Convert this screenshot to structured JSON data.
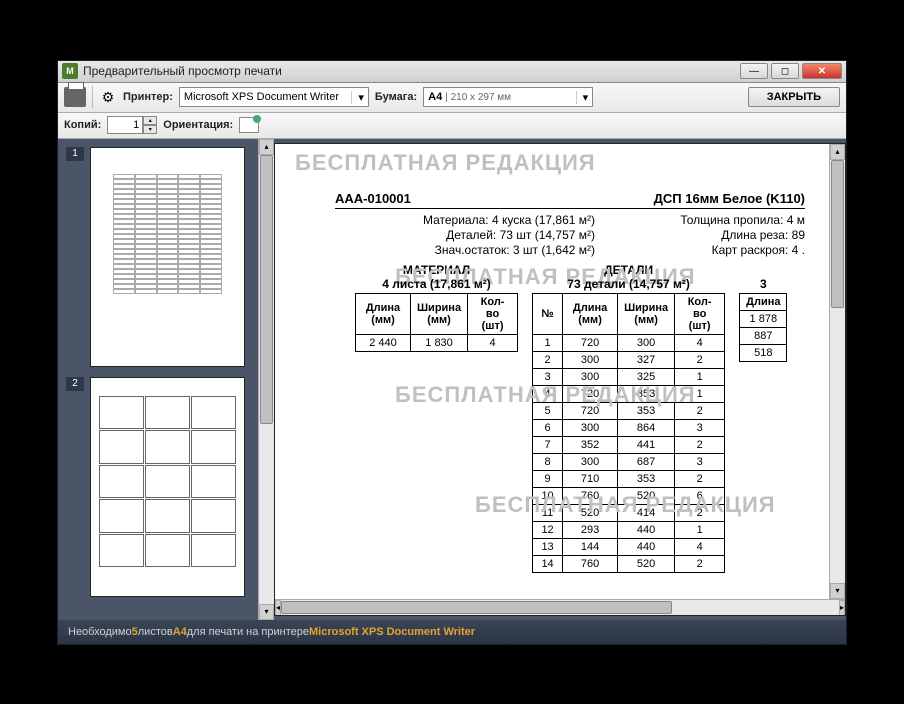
{
  "window": {
    "title": "Предварительный просмотр печати"
  },
  "toolbar": {
    "printer_label": "Принтер:",
    "printer_value": "Microsoft XPS Document Writer",
    "paper_label": "Бумага:",
    "paper_value": "A4",
    "paper_dims": "210 x 297 мм",
    "close_btn": "ЗАКРЫТЬ",
    "copies_label": "Копий:",
    "copies_value": "1",
    "orient_label": "Ориентация:"
  },
  "thumbs": [
    {
      "num": "1"
    },
    {
      "num": "2"
    }
  ],
  "watermark": "БЕСПЛАТНАЯ РЕДАКЦИЯ",
  "doc": {
    "code": "ААА-010001",
    "material_name": "ДСП 16мм Белое (K110)",
    "rows": [
      {
        "l": "Материала: 4 куска (17,861 м²)",
        "r": "Толщина пропила: 4 м"
      },
      {
        "l": "Деталей: 73 шт (14,757 м²)",
        "r": "Длина реза: 89"
      },
      {
        "l": "Знач.остаток: 3 шт (1,642 м²)",
        "r": "Карт раскроя: 4 ."
      }
    ]
  },
  "mat_section": {
    "title": "МАТЕРИАЛ",
    "sub": "4 листа (17,861 м²)",
    "headers": [
      "Длина (мм)",
      "Ширина (мм)",
      "Кол-во (шт)"
    ],
    "rows": [
      [
        "2 440",
        "1 830",
        "4"
      ]
    ]
  },
  "det_section": {
    "title": "ДЕТАЛИ",
    "sub": "73 детали (14,757 м²)",
    "headers": [
      "№",
      "Длина (мм)",
      "Ширина (мм)",
      "Кол-во (шт)"
    ],
    "rows": [
      [
        "1",
        "720",
        "300",
        "4"
      ],
      [
        "2",
        "300",
        "327",
        "2"
      ],
      [
        "3",
        "300",
        "325",
        "1"
      ],
      [
        "4",
        "720",
        "353",
        "1"
      ],
      [
        "5",
        "720",
        "353",
        "2"
      ],
      [
        "6",
        "300",
        "864",
        "3"
      ],
      [
        "7",
        "352",
        "441",
        "2"
      ],
      [
        "8",
        "300",
        "687",
        "3"
      ],
      [
        "9",
        "710",
        "353",
        "2"
      ],
      [
        "10",
        "760",
        "520",
        "6"
      ],
      [
        "11",
        "520",
        "414",
        "2"
      ],
      [
        "12",
        "293",
        "440",
        "1"
      ],
      [
        "13",
        "144",
        "440",
        "4"
      ],
      [
        "14",
        "760",
        "520",
        "2"
      ]
    ]
  },
  "ext_section": {
    "sub_prefix": "3",
    "headers": [
      "Длина"
    ],
    "rows": [
      [
        "1 878"
      ],
      [
        "887"
      ],
      [
        "518"
      ]
    ]
  },
  "status": {
    "t1": "Необходимо ",
    "sheets": "5",
    "t2": " листов ",
    "fmt": "A4",
    "t3": " для печати на принтере ",
    "printer": "Microsoft XPS Document Writer"
  }
}
